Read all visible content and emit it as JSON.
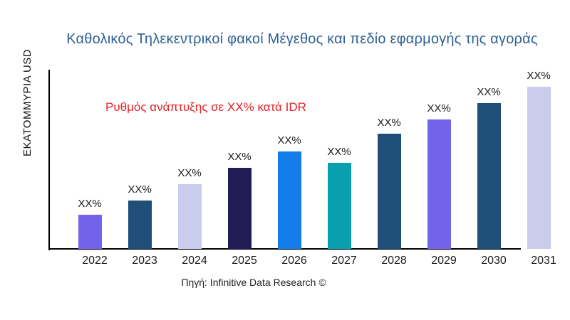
{
  "title": "Καθολικός Τηλεκεντρικοί φακοί Μέγεθος και πεδίο εφαρμογής της αγοράς",
  "y_axis_label": "ΕΚΑΤΟΜΜΥΡΙΑ USD",
  "annotation": "Ρυθμός ανάπτυξης σε XX% κατά IDR",
  "footer": "Πηγή: Infinitive Data Research ©",
  "colors": {
    "background": "#ffffff",
    "title_text": "#2E6096",
    "annotation_text": "#E32226",
    "axis": "#000000",
    "label_text": "#1a1a1a",
    "bar_violet": "#7164EB",
    "bar_steel_blue": "#1F4E79",
    "bar_lavender": "#C9CCEC",
    "bar_dark_navy": "#211B57",
    "bar_bright_blue": "#127CE8",
    "bar_teal": "#089FAF"
  },
  "chart_data": {
    "type": "bar",
    "title": "Καθολικός Τηλεκεντρικοί φακοί Μέγεθος και πεδίο εφαρμογής της αγοράς",
    "xlabel": "",
    "ylabel": "ΕΚΑΤΟΜΜΥΡΙΑ USD",
    "categories": [
      "2022",
      "2023",
      "2024",
      "2025",
      "2026",
      "2027",
      "2028",
      "2029",
      "2030",
      "2031"
    ],
    "bar_labels": [
      "XX%",
      "XX%",
      "XX%",
      "XX%",
      "XX%",
      "XX%",
      "XX%",
      "XX%",
      "XX%",
      "XX%"
    ],
    "relative_heights": [
      21,
      30,
      40,
      50,
      60,
      53,
      71,
      80,
      90,
      100
    ],
    "relative_heights_note": "values are placeholders (XX%) in source; heights normalized so 2031 = 100",
    "bar_colors": [
      "#7164EB",
      "#1F4E79",
      "#C9CCEC",
      "#211B57",
      "#127CE8",
      "#089FAF",
      "#1F4E79",
      "#7164EB",
      "#1F4E79",
      "#C9CCEC"
    ],
    "annotation": "Ρυθμός ανάπτυξης σε XX% κατά IDR",
    "source": "Πηγή: Infinitive Data Research ©",
    "grid": false,
    "legend": "none",
    "ylim": [
      0,
      100
    ]
  }
}
